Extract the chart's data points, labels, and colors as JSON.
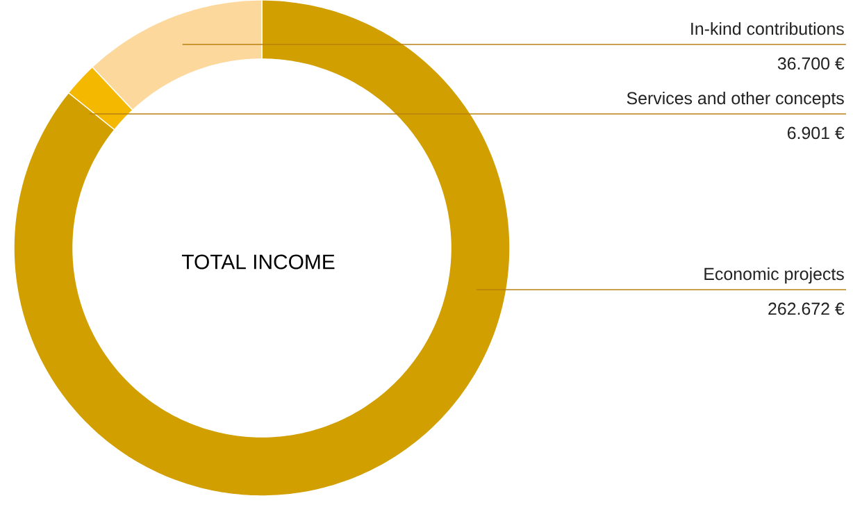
{
  "chart_data": {
    "type": "donut",
    "title": "TOTAL INCOME",
    "categories": [
      "Economic projects",
      "Services and other concepts",
      "In-kind contributions"
    ],
    "values": [
      262672,
      6901,
      36700
    ],
    "colors": [
      "#d19f00",
      "#f5b800",
      "#fdd89c"
    ],
    "value_labels": [
      "262.672 €",
      "6.901 €",
      "36.700 €"
    ]
  }
}
